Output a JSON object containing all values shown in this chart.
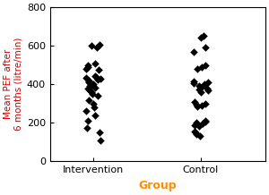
{
  "title": "",
  "xlabel": "Group",
  "ylabel": "Mean PEF after\n6 months (litre/min)",
  "xlabel_color": "#ff8c00",
  "ylabel_color": "#cc0000",
  "xtick_labels": [
    "Intervention",
    "Control"
  ],
  "xtick_color": "#0000cc",
  "ytick_color": "black",
  "ylim": [
    0,
    800
  ],
  "yticks": [
    0,
    200,
    400,
    600,
    800
  ],
  "intervention_values": [
    600,
    605,
    590,
    510,
    500,
    490,
    480,
    475,
    445,
    440,
    435,
    430,
    425,
    420,
    415,
    410,
    405,
    400,
    395,
    390,
    385,
    380,
    370,
    360,
    350,
    340,
    320,
    300,
    280,
    260,
    240,
    210,
    175,
    150,
    110
  ],
  "control_values": [
    650,
    645,
    590,
    570,
    500,
    490,
    480,
    415,
    410,
    405,
    400,
    395,
    390,
    385,
    380,
    375,
    370,
    360,
    310,
    300,
    295,
    290,
    285,
    210,
    205,
    200,
    195,
    190,
    185,
    155,
    150,
    140,
    130
  ],
  "marker": "D",
  "marker_size": 4,
  "marker_color": "black",
  "bg_color": "white",
  "jitter_seed_intervention": 42,
  "jitter_seed_control": 99,
  "jitter_amount": 0.07
}
